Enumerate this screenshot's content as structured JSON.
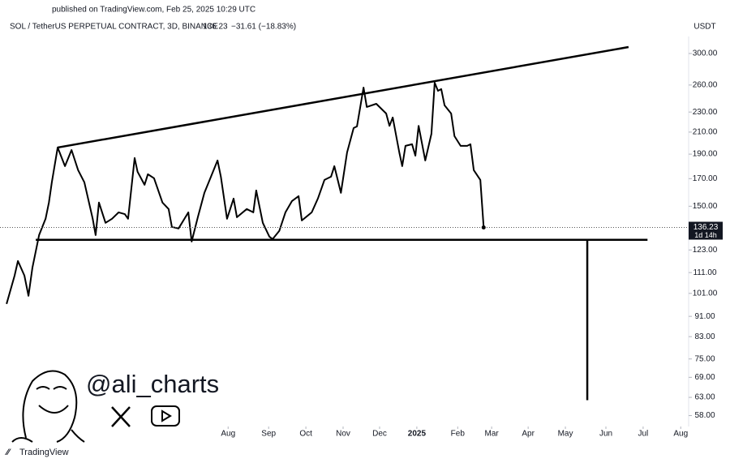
{
  "chart_data": {
    "type": "line",
    "published": "published on TradingView.com, Feb 25, 2025 10:29 UTC",
    "title": "SOL / TetherUS PERPETUAL CONTRACT, 3D, BINANCE",
    "last_price": 136.23,
    "change": "−31.61 (−18.83%)",
    "currency": "USDT",
    "countdown": "1d 14h",
    "watermark": "@ali_charts",
    "brand": "TradingView",
    "color": "#000000",
    "log_scale": true,
    "x": [
      0,
      2.2,
      3.1,
      4.9,
      6,
      7.1,
      8.9,
      10.7,
      11.6,
      12.4,
      14,
      16,
      17.8,
      19.6,
      21.3,
      23.6,
      24.4,
      25.3,
      27.1,
      28.9,
      30.7,
      32.4,
      33.3,
      35.1,
      35.9,
      37.8,
      38.7,
      40.4,
      42.7,
      44.4,
      45.3,
      47.1,
      49.8,
      50.7,
      52.4,
      54.2,
      56,
      57.8,
      58.7,
      60.4,
      62.2,
      63.1,
      65.8,
      67.6,
      68.4,
      70.2,
      72,
      72.9,
      74.7,
      76.4,
      78.2,
      80,
      80.9,
      83.6,
      85.3,
      87.1,
      88.9,
      89.8,
      91.6,
      93.3,
      95.1,
      96,
      97.8,
      98.7,
      101.3,
      104,
      104.9,
      105.8,
      107.6,
      108.4,
      109.3,
      111.1,
      112,
      112.9,
      114.7,
      116.4,
      117.3,
      118.2,
      119.1,
      120,
      121.8,
      122.7,
      124.4,
      126.2,
      127.1,
      128,
      129.8,
      130.7
    ],
    "values": [
      96.3,
      109.5,
      117.0,
      109.5,
      99.9,
      113.6,
      131.6,
      141.7,
      152.5,
      167.2,
      195.8,
      179.9,
      193.6,
      176.7,
      167.2,
      141.7,
      131.6,
      152.5,
      139.1,
      141.7,
      145.9,
      144.7,
      141.7,
      186.7,
      175.4,
      165.3,
      173.4,
      170.3,
      152.5,
      148.1,
      136.6,
      135.6,
      145.9,
      127.8,
      142.7,
      159.4,
      171.5,
      184.6,
      171.5,
      141.7,
      155.3,
      142.7,
      148.1,
      145.9,
      161.1,
      139.1,
      130.7,
      129.2,
      134.1,
      145.9,
      153.6,
      157.0,
      140.6,
      145.9,
      155.3,
      169.0,
      171.5,
      179.9,
      159.4,
      191.5,
      213.9,
      215.5,
      257.0,
      235.4,
      238.8,
      228.5,
      216.0,
      224.4,
      191.5,
      179.9,
      197.3,
      198.7,
      188.7,
      216.0,
      184.6,
      208.4,
      262.8,
      253.3,
      255.2,
      237.1,
      228.5,
      206.2,
      197.3,
      197.3,
      198.7,
      176.7,
      169.0,
      136.23
    ],
    "drawings": [
      {
        "x": [
          14,
          170.4
        ],
        "values": [
          195.8,
          308.9
        ]
      },
      {
        "x": [
          8,
          175.6
        ],
        "values": [
          128.8,
          128.8
        ]
      },
      {
        "x": [
          159.1,
          159.1
        ],
        "values": [
          128.8,
          62.2
        ]
      }
    ],
    "xlim": [
      -1.8,
      187
    ],
    "xticks": [
      {
        "value": 60.7,
        "label": "Aug"
      },
      {
        "value": 71.8,
        "label": "Sep"
      },
      {
        "value": 82,
        "label": "Oct"
      },
      {
        "value": 92.2,
        "label": "Nov"
      },
      {
        "value": 102.2,
        "label": "Dec"
      },
      {
        "value": 112.4,
        "label": "2025"
      },
      {
        "value": 123.6,
        "label": "Feb"
      },
      {
        "value": 132.9,
        "label": "Mar"
      },
      {
        "value": 142.9,
        "label": "Apr"
      },
      {
        "value": 153.1,
        "label": "May"
      },
      {
        "value": 164.2,
        "label": "Jun"
      },
      {
        "value": 174.4,
        "label": "Jul"
      },
      {
        "value": 184.7,
        "label": "Aug"
      }
    ],
    "ylim": [
      55.4,
      330.1
    ],
    "yticks": [
      {
        "value": 300,
        "label": "300.00"
      },
      {
        "value": 260,
        "label": "260.00"
      },
      {
        "value": 230,
        "label": "230.00"
      },
      {
        "value": 210,
        "label": "210.00"
      },
      {
        "value": 190,
        "label": "190.00"
      },
      {
        "value": 170,
        "label": "170.00"
      },
      {
        "value": 150,
        "label": "150.00"
      },
      {
        "value": 123,
        "label": "123.00"
      },
      {
        "value": 111,
        "label": "111.00"
      },
      {
        "value": 101,
        "label": "101.00"
      },
      {
        "value": 91,
        "label": "91.00"
      },
      {
        "value": 83,
        "label": "83.00"
      },
      {
        "value": 75,
        "label": "75.00"
      },
      {
        "value": 69,
        "label": "69.00"
      },
      {
        "value": 63,
        "label": "63.00"
      },
      {
        "value": 58,
        "label": "58.00"
      }
    ]
  }
}
